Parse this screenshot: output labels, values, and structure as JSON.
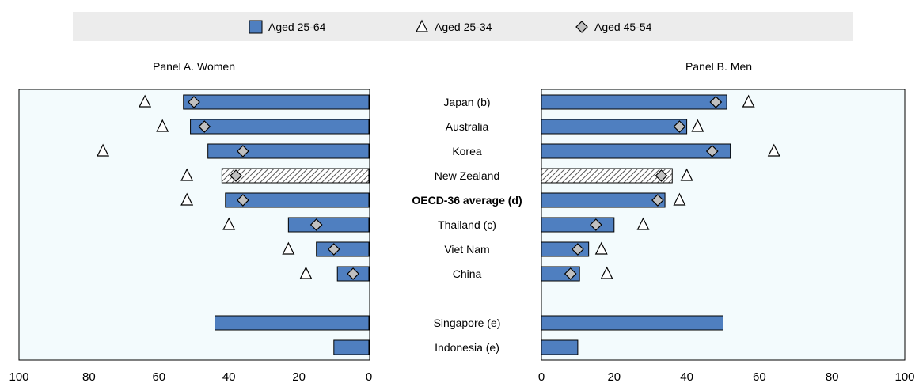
{
  "legend": [
    {
      "label": "Aged 25-64",
      "marker": "bar",
      "color": "#4f7fc0"
    },
    {
      "label": "Aged 25-34",
      "marker": "triangle",
      "color": "#ffffff"
    },
    {
      "label": "Aged 45-54",
      "marker": "diamond",
      "color": "#c0c0c0"
    }
  ],
  "chart_data": [
    {
      "type": "bar",
      "orientation": "horizontal-reversed",
      "title": "Panel A. Women",
      "categories": [
        "Japan (b)",
        "Australia",
        "Korea",
        "New Zealand",
        "OECD-36 average (d)",
        "Thailand (c)",
        "Viet Nam",
        "China",
        "",
        "Singapore (e)",
        "Indonesia (e)"
      ],
      "series": [
        {
          "name": "Aged 25-64",
          "type": "bar",
          "values": [
            53,
            51,
            46,
            42,
            41,
            23,
            15,
            9,
            null,
            44,
            10
          ]
        },
        {
          "name": "Aged 25-34",
          "type": "scatter-triangle",
          "values": [
            64,
            59,
            76,
            52,
            52,
            40,
            23,
            18,
            null,
            null,
            null
          ]
        },
        {
          "name": "Aged 45-54",
          "type": "scatter-diamond",
          "values": [
            50,
            47,
            36,
            38,
            36,
            15,
            10,
            4.5,
            null,
            null,
            null
          ]
        }
      ],
      "hatched_category": "New Zealand",
      "xlim": [
        0,
        100
      ],
      "xticks": [
        "100",
        "80",
        "60",
        "40",
        "20",
        "0"
      ],
      "grid": false
    },
    {
      "type": "bar",
      "orientation": "horizontal",
      "title": "Panel B. Men",
      "categories": [
        "Japan (b)",
        "Australia",
        "Korea",
        "New Zealand",
        "OECD-36 average (d)",
        "Thailand (c)",
        "Viet Nam",
        "China",
        "",
        "Singapore (e)",
        "Indonesia (e)"
      ],
      "series": [
        {
          "name": "Aged 25-64",
          "type": "bar",
          "values": [
            51,
            40,
            52,
            36,
            34,
            20,
            13,
            10.5,
            null,
            50,
            10
          ]
        },
        {
          "name": "Aged 25-34",
          "type": "scatter-triangle",
          "values": [
            57,
            43,
            64,
            40,
            38,
            28,
            16.5,
            18,
            null,
            null,
            null
          ]
        },
        {
          "name": "Aged 45-54",
          "type": "scatter-diamond",
          "values": [
            48,
            38,
            47,
            33,
            32,
            15,
            10,
            8,
            null,
            null,
            null
          ]
        }
      ],
      "hatched_category": "New Zealand",
      "xlim": [
        0,
        100
      ],
      "xticks": [
        "0",
        "20",
        "40",
        "60",
        "80",
        "100"
      ],
      "grid": false
    }
  ],
  "bold_category": "OECD-36 average (d)",
  "colors": {
    "bar": "#4f7fc0",
    "bar_stroke": "#000000",
    "panel_bg": "#f3fbfd",
    "legend_bg": "#ececec",
    "diamond": "#c0c0c0"
  }
}
